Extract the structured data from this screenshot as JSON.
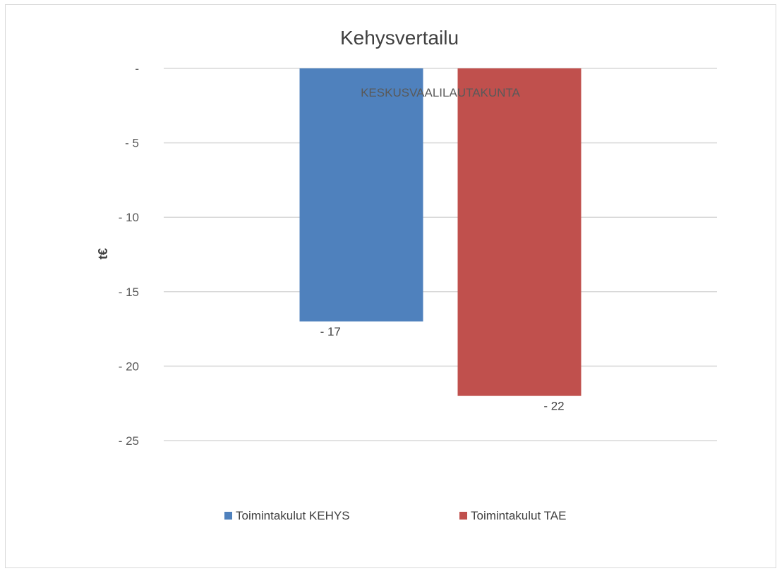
{
  "chart_data": {
    "type": "bar",
    "title": "Kehysvertailu",
    "xlabel": "",
    "ylabel": "t€",
    "categories": [
      "KESKUSVAALILAUTAKUNTA"
    ],
    "series": [
      {
        "name": "Toimintakulut KEHYS",
        "values": [
          -17
        ],
        "color": "#4f81bd",
        "label": "- 17"
      },
      {
        "name": "Toimintakulut TAE",
        "values": [
          -22
        ],
        "color": "#c0504d",
        "label": "- 22"
      }
    ],
    "ylim": [
      -25,
      0
    ],
    "yticks": [
      0,
      -5,
      -10,
      -15,
      -20,
      -25
    ],
    "ytick_labels": [
      "-",
      "- 5",
      "- 10",
      "- 15",
      "- 20",
      "- 25"
    ],
    "grid": true,
    "legend_position": "bottom"
  }
}
